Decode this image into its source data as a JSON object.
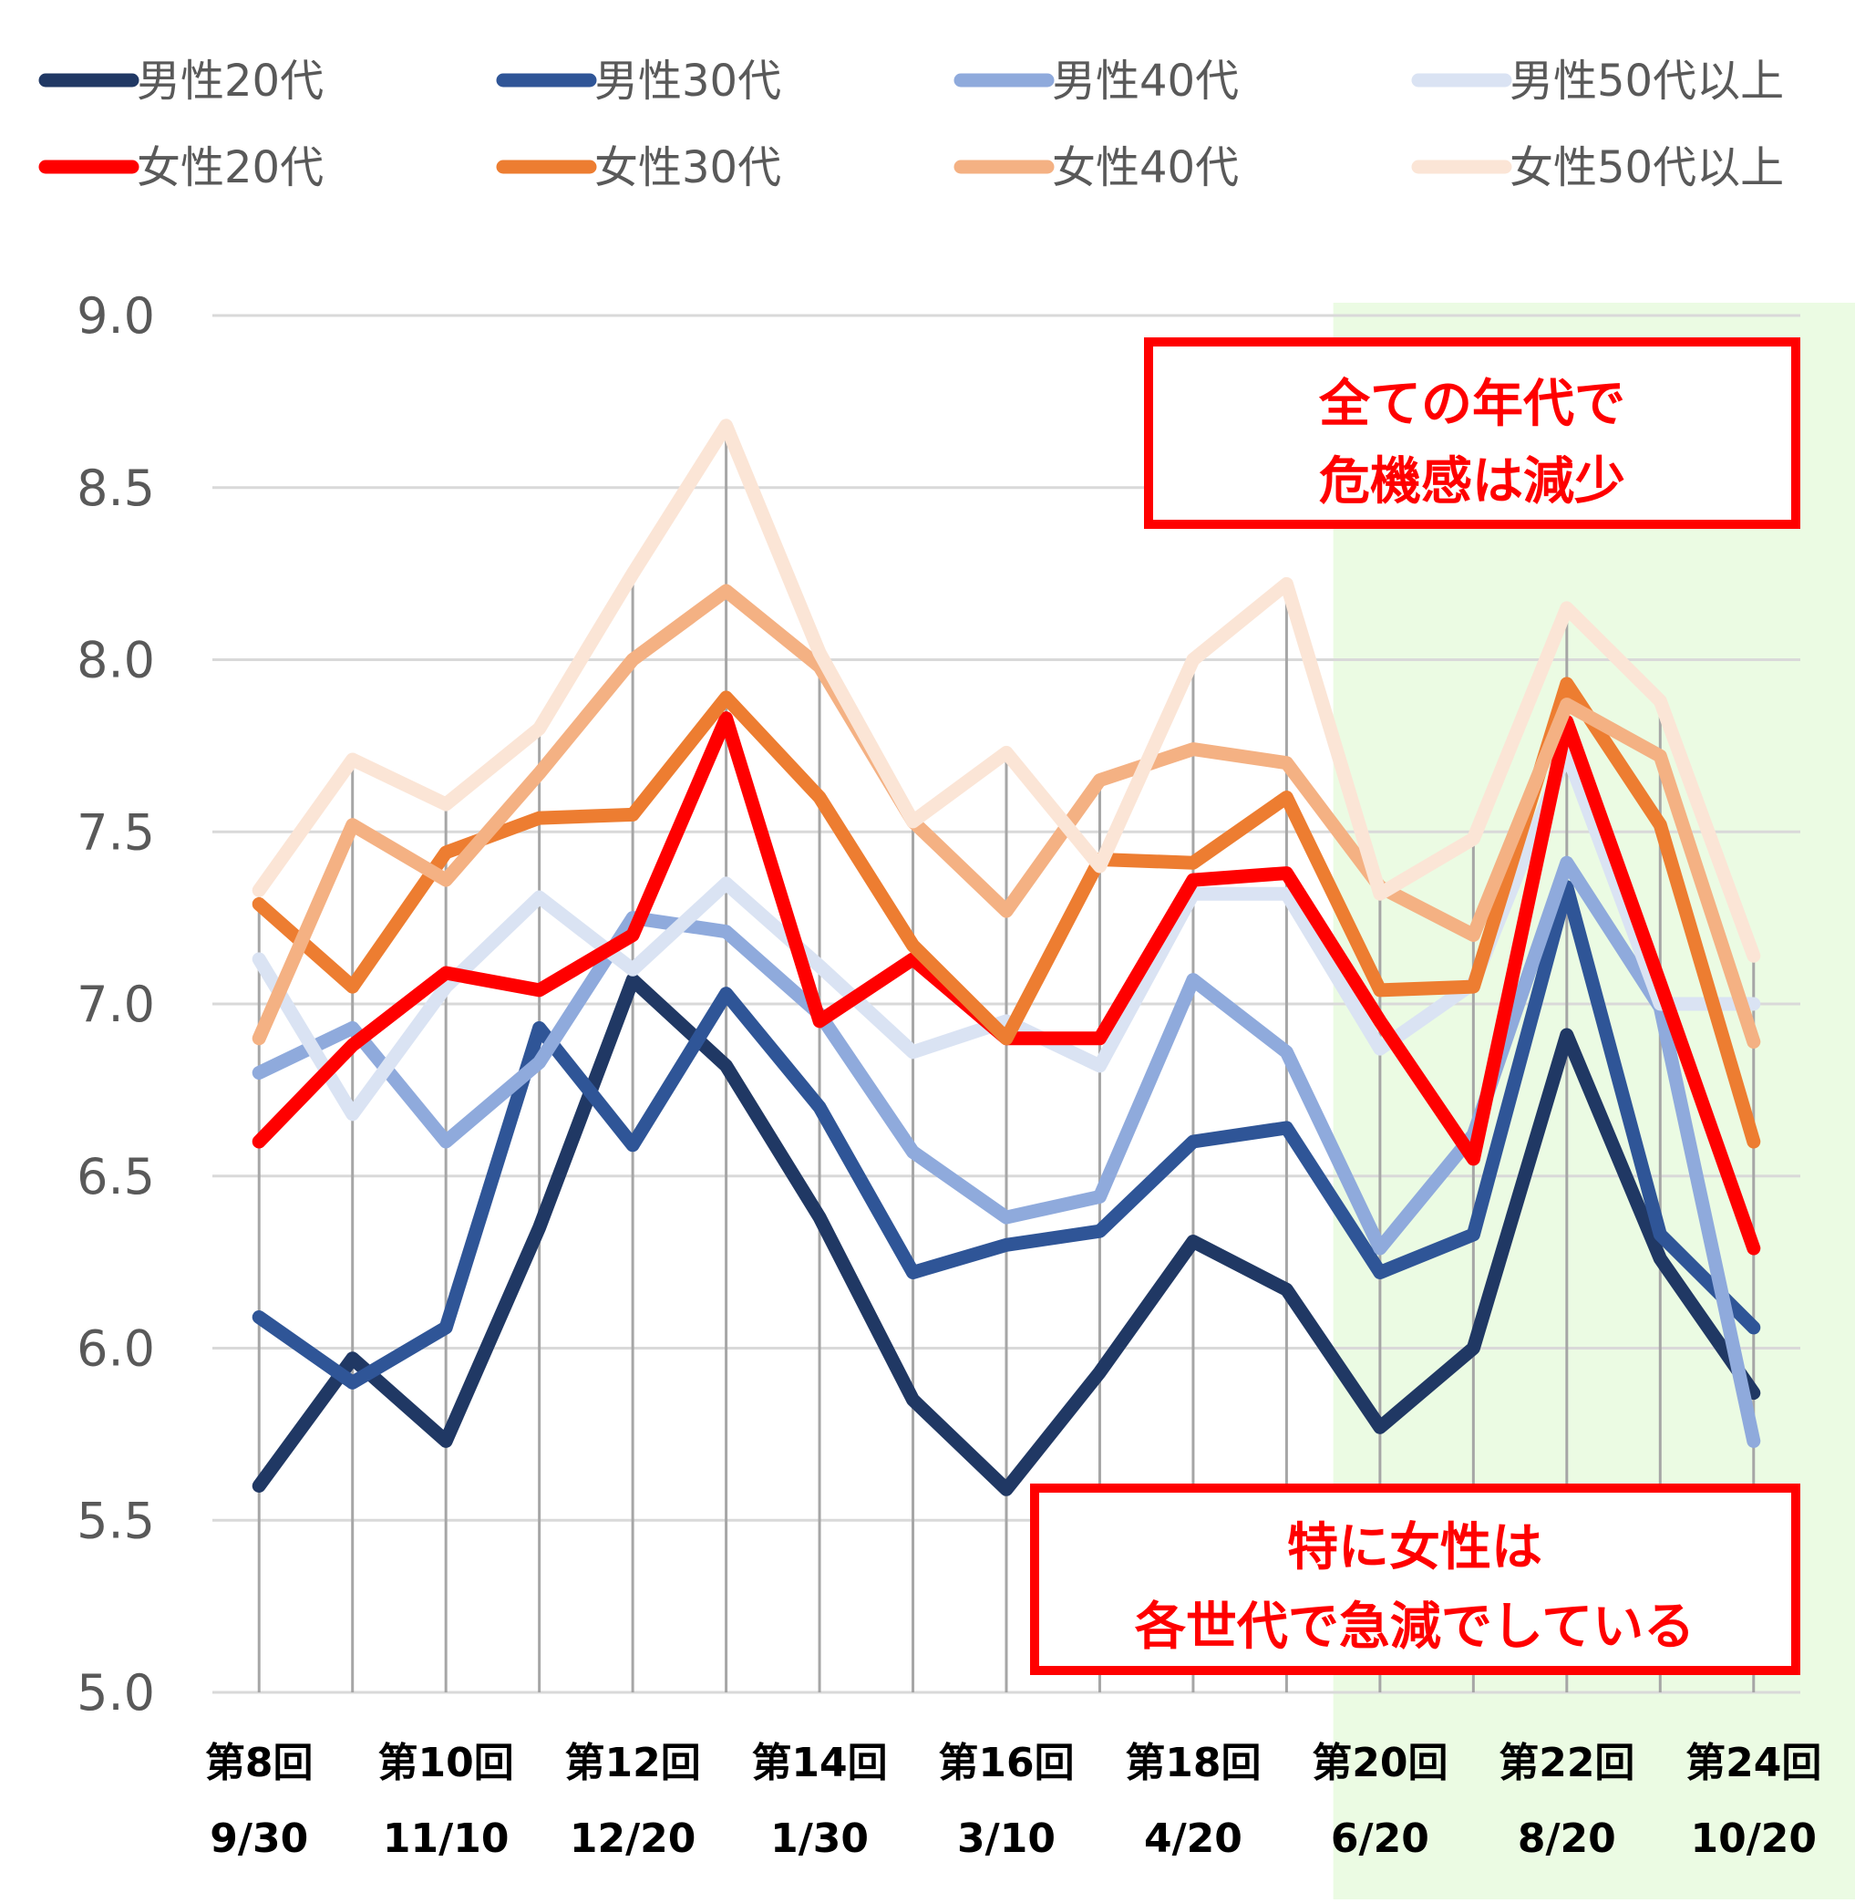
{
  "chart_data": {
    "type": "line",
    "x_labels": [
      {
        "round": "第8回",
        "date": "9/30"
      },
      {
        "round": "",
        "date": ""
      },
      {
        "round": "第10回",
        "date": "11/10"
      },
      {
        "round": "",
        "date": ""
      },
      {
        "round": "第12回",
        "date": "12/20"
      },
      {
        "round": "",
        "date": ""
      },
      {
        "round": "第14回",
        "date": "1/30"
      },
      {
        "round": "",
        "date": ""
      },
      {
        "round": "第16回",
        "date": "3/10"
      },
      {
        "round": "",
        "date": ""
      },
      {
        "round": "第18回",
        "date": "4/20"
      },
      {
        "round": "",
        "date": ""
      },
      {
        "round": "第20回",
        "date": "6/20"
      },
      {
        "round": "",
        "date": ""
      },
      {
        "round": "第22回",
        "date": "8/20"
      },
      {
        "round": "",
        "date": ""
      },
      {
        "round": "第24回",
        "date": "10/20"
      }
    ],
    "ylim": [
      5.0,
      9.0
    ],
    "yticks": [
      "5.0",
      "5.5",
      "6.0",
      "6.5",
      "7.0",
      "7.5",
      "8.0",
      "8.5",
      "9.0"
    ],
    "grid": true,
    "legend_position": "top",
    "highlight_range": {
      "from_index": 11.5,
      "to_index": 16.5,
      "color": "#ebfbe3"
    },
    "series": [
      {
        "name": "男性20代",
        "color": "#203864",
        "values": [
          5.6,
          5.97,
          5.73,
          6.35,
          7.07,
          6.82,
          6.38,
          5.85,
          5.59,
          5.93,
          6.31,
          6.17,
          5.77,
          6.0,
          6.91,
          6.26,
          5.87
        ]
      },
      {
        "name": "男性30代",
        "color": "#2f5597",
        "values": [
          6.09,
          5.9,
          6.06,
          6.93,
          6.59,
          7.03,
          6.7,
          6.22,
          6.3,
          6.34,
          6.6,
          6.64,
          6.22,
          6.33,
          7.34,
          6.33,
          6.06
        ]
      },
      {
        "name": "男性40代",
        "color": "#8faadc",
        "values": [
          6.8,
          6.93,
          6.6,
          6.83,
          7.25,
          7.21,
          6.97,
          6.57,
          6.38,
          6.44,
          7.07,
          6.86,
          6.29,
          6.62,
          7.41,
          6.99,
          5.73
        ]
      },
      {
        "name": "男性50代以上",
        "color": "#dae3f3",
        "values": [
          7.13,
          6.68,
          7.05,
          7.31,
          7.1,
          7.35,
          7.11,
          6.86,
          6.95,
          6.82,
          7.32,
          7.32,
          6.87,
          7.06,
          7.73,
          7.0,
          7.0
        ]
      },
      {
        "name": "女性20代",
        "color": "#ff0000",
        "values": [
          6.6,
          6.88,
          7.09,
          7.04,
          7.2,
          7.83,
          6.95,
          7.13,
          6.9,
          6.9,
          7.36,
          7.38,
          6.95,
          6.55,
          7.82,
          7.06,
          6.29
        ]
      },
      {
        "name": "女性30代",
        "color": "#ed7d31",
        "values": [
          7.29,
          7.05,
          7.44,
          7.54,
          7.55,
          7.89,
          7.6,
          7.17,
          6.9,
          7.42,
          7.41,
          7.6,
          7.04,
          7.05,
          7.93,
          7.52,
          6.6
        ]
      },
      {
        "name": "女性40代",
        "color": "#f4b183",
        "values": [
          6.9,
          7.52,
          7.36,
          7.67,
          8.0,
          8.2,
          7.98,
          7.53,
          7.27,
          7.65,
          7.74,
          7.7,
          7.34,
          7.2,
          7.87,
          7.72,
          6.89
        ]
      },
      {
        "name": "女性50代以上",
        "color": "#fbe5d6",
        "values": [
          7.33,
          7.71,
          7.58,
          7.8,
          8.25,
          8.68,
          8.02,
          7.53,
          7.73,
          7.4,
          8.0,
          8.22,
          7.32,
          7.48,
          8.15,
          7.88,
          7.14
        ]
      }
    ],
    "annotations": [
      {
        "lines": [
          "全ての年代で",
          "危機感は減少"
        ]
      },
      {
        "lines": [
          "特に女性は",
          "各世代で急減でしている"
        ]
      }
    ]
  }
}
